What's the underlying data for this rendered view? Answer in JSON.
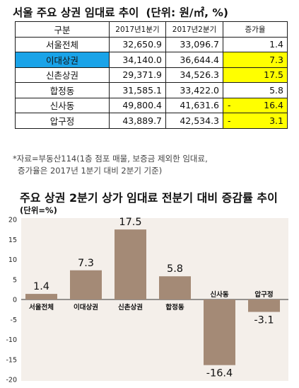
{
  "table_title": "서울 주요 상권 임대료 추이",
  "table_unit": "(단위: 원/㎡, %)",
  "table": {
    "headers": [
      "구분",
      "2017년1분기",
      "2017년2분기",
      "증가율"
    ],
    "rows": [
      {
        "area": "서울전체",
        "q1": "32,650.9",
        "q2": "33,096.7",
        "growth": "1.4",
        "minus": ""
      },
      {
        "area": "이대상권",
        "q1": "34,140.0",
        "q2": "36,644.4",
        "growth": "7.3",
        "minus": ""
      },
      {
        "area": "신촌상권",
        "q1": "29,371.9",
        "q2": "34,526.3",
        "growth": "17.5",
        "minus": ""
      },
      {
        "area": "합정동",
        "q1": "31,585.1",
        "q2": "33,422.0",
        "growth": "5.8",
        "minus": ""
      },
      {
        "area": "신사동",
        "q1": "49,800.4",
        "q2": "41,631.6",
        "growth": "16.4",
        "minus": "-"
      },
      {
        "area": "압구정",
        "q1": "43,889.7",
        "q2": "42,534.3",
        "growth": "3.1",
        "minus": "-"
      }
    ],
    "highlight_color": "#1aa3e8",
    "yellow_color": "#ffff00"
  },
  "note": {
    "line1": "*자료=부동산114(1층 점포 매물, 보증금 제외한 임대료,",
    "line2": "증가율은 2017년 1분기 대비 2분기 기준)"
  },
  "chart_data": {
    "type": "bar",
    "title": "주요 상권 2분기 상가 임대료 전분기 대비 증감률 추이",
    "subtitle": "(단위=%)",
    "categories": [
      "서울전체",
      "이대상권",
      "신촌상권",
      "합정동",
      "신사동",
      "압구정"
    ],
    "values": [
      1.4,
      7.3,
      17.5,
      5.8,
      -16.4,
      -3.1
    ],
    "data_labels": [
      "1.4",
      "7.3",
      "17.5",
      "5.8",
      "-16.4",
      "-3.1"
    ],
    "yticks": [
      20,
      15,
      10,
      5,
      0,
      -5,
      -10,
      -15,
      -20
    ],
    "ylim": [
      -20,
      20
    ],
    "grid": false,
    "colors": {
      "bar": "#a48a76",
      "background": "#f4efea",
      "axis": "#333333"
    }
  }
}
